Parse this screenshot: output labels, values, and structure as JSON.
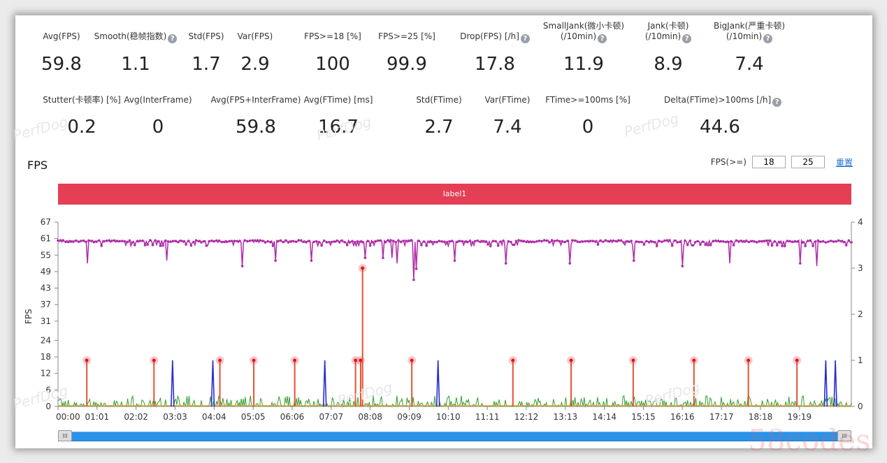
{
  "stats_row1": [
    {
      "label": "Avg(FPS)",
      "value": "59.8",
      "help": false
    },
    {
      "label": "Smooth(稳帧指数)",
      "value": "1.1",
      "help": true
    },
    {
      "label": "Std(FPS)",
      "value": "1.7",
      "help": false
    },
    {
      "label": "Var(FPS)",
      "value": "2.9",
      "help": false
    },
    {
      "label": "FPS>=18 [%]",
      "value": "100",
      "help": false
    },
    {
      "label": "FPS>=25 [%]",
      "value": "99.9",
      "help": false
    },
    {
      "label": "Drop(FPS) [/h]",
      "value": "17.8",
      "help": true
    },
    {
      "label": "SmallJank(微小卡顿)",
      "label2": "(/10min)",
      "value": "11.9",
      "help": true
    },
    {
      "label": "Jank(卡顿)",
      "label2": "(/10min)",
      "value": "8.9",
      "help": true
    },
    {
      "label": "BigJank(严重卡顿)",
      "label2": "(/10min)",
      "value": "7.4",
      "help": true
    }
  ],
  "stats_row2": [
    {
      "label": "Stutter(卡顿率) [%]",
      "value": "0.2",
      "help": false
    },
    {
      "label": "Avg(InterFrame)",
      "value": "0",
      "help": false
    },
    {
      "label": "Avg(FPS+InterFrame)",
      "value": "59.8",
      "help": false
    },
    {
      "label": "Avg(FTime) [ms]",
      "value": "16.7",
      "help": false
    },
    {
      "label": "Std(FTime)",
      "value": "2.7",
      "help": false
    },
    {
      "label": "Var(FTime)",
      "value": "7.4",
      "help": false
    },
    {
      "label": "FTime>=100ms [%]",
      "value": "0",
      "help": false
    },
    {
      "label": "Delta(FTime)>100ms [/h]",
      "value": "44.6",
      "help": true
    }
  ],
  "help_glyph": "?",
  "watermark": "PerfDog",
  "corner_watermark": "58codes",
  "section": {
    "title": "FPS",
    "threshold_label": "FPS(>=)",
    "threshold1": "18",
    "threshold2": "25",
    "reset_label": "重置",
    "label_bar": "label1"
  },
  "scrollbar": {
    "handle_glyph": "III",
    "range_start": 0,
    "range_end": 1
  },
  "colors": {
    "fps": "#b02ca8",
    "jank": "#e8512f",
    "bigjank_marker": "#e0142d",
    "smalljank": "#2a2ad6",
    "stutter": "#2e9e2e",
    "label_bar": "#e43f55",
    "scroll": "#2a93e8"
  },
  "chart_data": {
    "type": "line",
    "title": "FPS",
    "ylabel": "FPS",
    "ylabel_right": "",
    "y_ticks": [
      0,
      6,
      12,
      18,
      24,
      31,
      37,
      43,
      49,
      55,
      61,
      67
    ],
    "ylim": [
      0,
      67
    ],
    "y2_ticks": [
      0,
      1,
      2,
      3,
      4
    ],
    "y2lim": [
      0,
      4
    ],
    "x_ticks": [
      "00:00",
      "01:01",
      "02:02",
      "03:03",
      "04:04",
      "05:05",
      "06:06",
      "07:07",
      "08:08",
      "09:09",
      "10:10",
      "11:11",
      "12:12",
      "13:13",
      "14:14",
      "15:15",
      "16:16",
      "17:17",
      "18:18",
      "19:19"
    ],
    "x_range_seconds": [
      0,
      1240
    ],
    "series": [
      {
        "name": "FPS",
        "axis": "left",
        "baseline": 59.8,
        "dips": [
          [
            45,
            52
          ],
          [
            170,
            53
          ],
          [
            288,
            51
          ],
          [
            340,
            53
          ],
          [
            395,
            53
          ],
          [
            480,
            54
          ],
          [
            507,
            54
          ],
          [
            522,
            54
          ],
          [
            530,
            52
          ],
          [
            555,
            46
          ],
          [
            560,
            50
          ],
          [
            620,
            53
          ],
          [
            700,
            52
          ],
          [
            800,
            52
          ],
          [
            900,
            53
          ],
          [
            975,
            51
          ],
          [
            1050,
            52
          ],
          [
            1160,
            52
          ],
          [
            1185,
            51
          ]
        ]
      },
      {
        "name": "BigJank",
        "axis": "right",
        "events": [
          [
            45,
            1
          ],
          [
            150,
            1
          ],
          [
            253,
            1
          ],
          [
            306,
            1
          ],
          [
            370,
            1
          ],
          [
            465,
            1
          ],
          [
            473,
            1
          ],
          [
            476,
            3
          ],
          [
            553,
            1
          ],
          [
            711,
            1
          ],
          [
            802,
            1
          ],
          [
            899,
            1
          ],
          [
            994,
            1
          ],
          [
            1079,
            1
          ],
          [
            1155,
            1
          ]
        ]
      },
      {
        "name": "SmallJank",
        "axis": "right",
        "events": [
          [
            179,
            1
          ],
          [
            242,
            1
          ],
          [
            417,
            1
          ],
          [
            594,
            1
          ],
          [
            1200,
            1
          ],
          [
            1215,
            1
          ]
        ]
      },
      {
        "name": "Stutter",
        "axis": "right",
        "noise_max": 0.2
      }
    ]
  }
}
